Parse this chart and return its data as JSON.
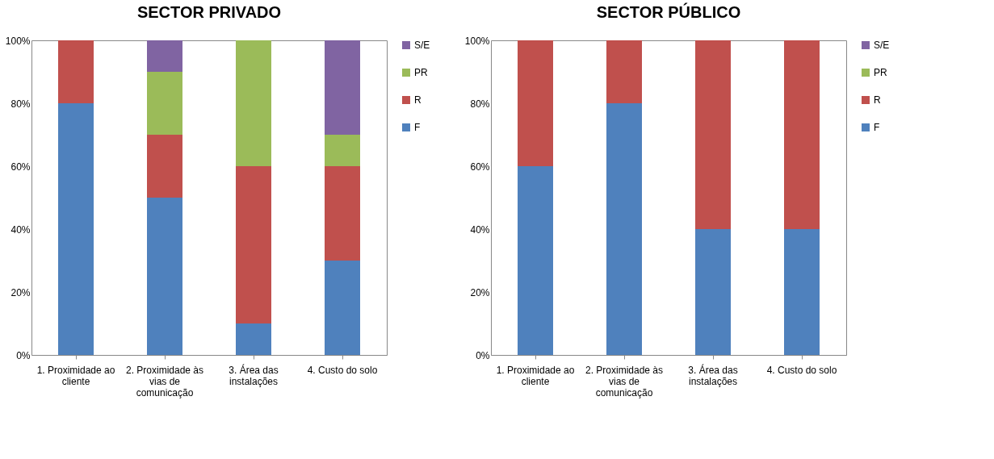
{
  "chart_data": [
    {
      "type": "bar",
      "title": "SECTOR PRIVADO",
      "stacked": true,
      "categories": [
        "1. Proximidade ao cliente",
        "2. Proximidade às vias de comunicação",
        "3. Área das instalações",
        "4. Custo do solo"
      ],
      "ylim": [
        0,
        100
      ],
      "yticks": [
        {
          "value": 0,
          "label": "0%"
        },
        {
          "value": 20,
          "label": "20%"
        },
        {
          "value": 40,
          "label": "40%"
        },
        {
          "value": 60,
          "label": "60%"
        },
        {
          "value": 80,
          "label": "80%"
        },
        {
          "value": 100,
          "label": "100%"
        }
      ],
      "grid": false,
      "legend": "right",
      "series": [
        {
          "name": "F",
          "color": "#4f81bd",
          "values": [
            80,
            50,
            10,
            30
          ]
        },
        {
          "name": "R",
          "color": "#c0504d",
          "values": [
            20,
            20,
            50,
            30
          ]
        },
        {
          "name": "PR",
          "color": "#9bbb59",
          "values": [
            0,
            20,
            40,
            10
          ]
        },
        {
          "name": "S/E",
          "color": "#8064a2",
          "values": [
            0,
            10,
            0,
            30
          ]
        }
      ]
    },
    {
      "type": "bar",
      "title": "SECTOR PÚBLICO",
      "stacked": true,
      "categories": [
        "1. Proximidade ao cliente",
        "2. Proximidade às vias de comunicação",
        "3. Área das instalações",
        "4. Custo do solo"
      ],
      "ylim": [
        0,
        100
      ],
      "yticks": [
        {
          "value": 0,
          "label": "0%"
        },
        {
          "value": 20,
          "label": "20%"
        },
        {
          "value": 40,
          "label": "40%"
        },
        {
          "value": 60,
          "label": "60%"
        },
        {
          "value": 80,
          "label": "80%"
        },
        {
          "value": 100,
          "label": "100%"
        }
      ],
      "grid": false,
      "legend": "right",
      "series": [
        {
          "name": "F",
          "color": "#4f81bd",
          "values": [
            60,
            80,
            40,
            40
          ]
        },
        {
          "name": "R",
          "color": "#c0504d",
          "values": [
            40,
            20,
            60,
            60
          ]
        },
        {
          "name": "PR",
          "color": "#9bbb59",
          "values": [
            0,
            0,
            0,
            0
          ]
        },
        {
          "name": "S/E",
          "color": "#8064a2",
          "values": [
            0,
            0,
            0,
            0
          ]
        }
      ]
    }
  ]
}
